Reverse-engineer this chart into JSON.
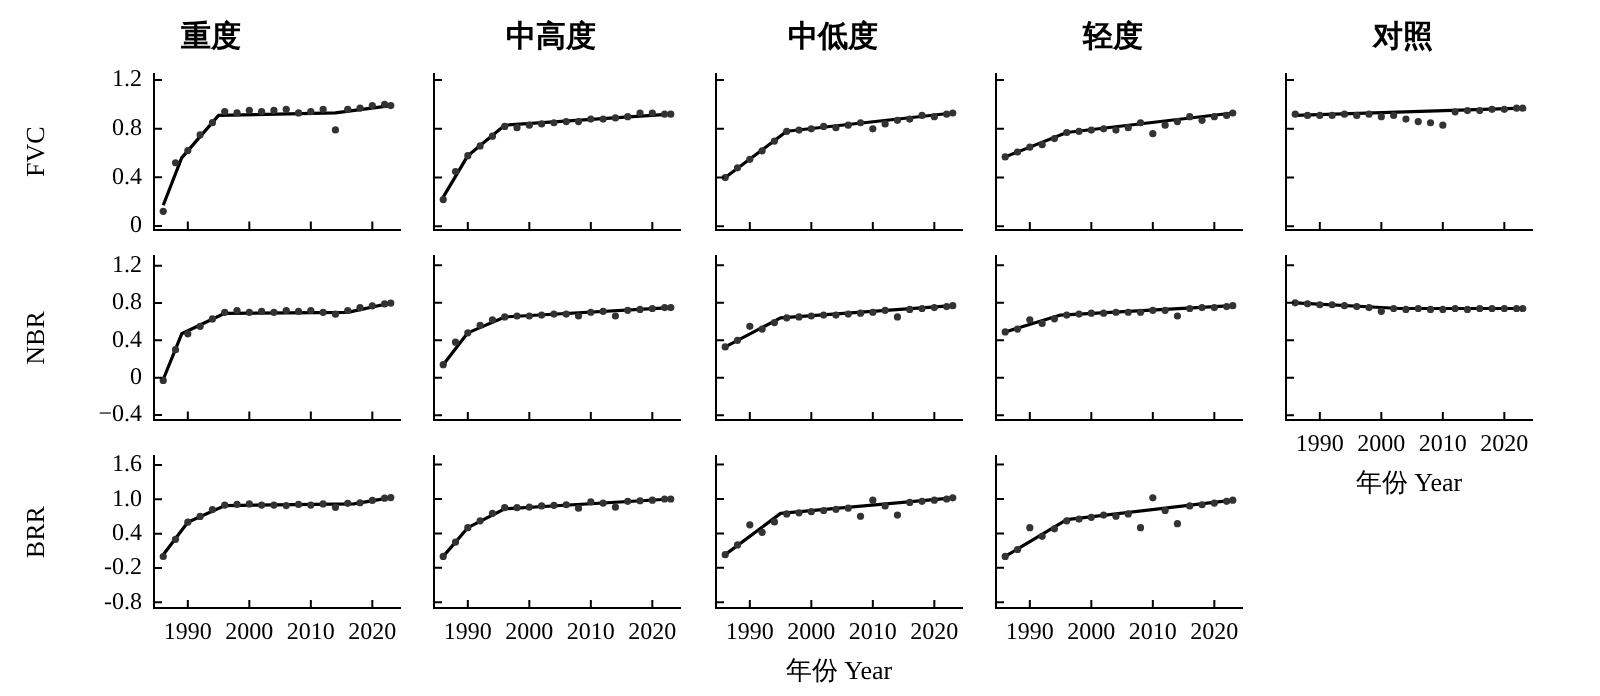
{
  "chart_data": [
    {
      "type": "line",
      "title": "重度",
      "ylabel": "FVC",
      "tick_labels": "y",
      "x": [
        1986,
        1988,
        1990,
        1992,
        1994,
        1996,
        1998,
        2000,
        2002,
        2004,
        2006,
        2008,
        2010,
        2012,
        2014,
        2016,
        2018,
        2020,
        2022,
        2023
      ],
      "xlim": [
        1984.5,
        2024.5
      ],
      "xticks": [
        1990,
        2000,
        2010,
        2020
      ],
      "ylim": [
        -0.03,
        1.25
      ],
      "yticks": [
        0,
        0.4,
        0.8,
        1.2
      ],
      "series": [
        {
          "type": "scatter",
          "marker": "circle",
          "color": "#333333",
          "values": [
            0.12,
            0.52,
            0.62,
            0.75,
            0.85,
            0.94,
            0.93,
            0.95,
            0.94,
            0.95,
            0.96,
            0.93,
            0.94,
            0.96,
            0.79,
            0.96,
            0.97,
            0.99,
            1.0,
            0.99
          ]
        },
        {
          "type": "line",
          "color": "#000000",
          "x": [
            1986,
            1989,
            1995,
            2014,
            2023
          ],
          "values": [
            0.17,
            0.56,
            0.91,
            0.93,
            0.99
          ]
        }
      ]
    },
    {
      "type": "line",
      "title": "中高度",
      "tick_labels": false,
      "x": [
        1986,
        1988,
        1990,
        1992,
        1994,
        1996,
        1998,
        2000,
        2002,
        2004,
        2006,
        2008,
        2010,
        2012,
        2014,
        2016,
        2018,
        2020,
        2022,
        2023
      ],
      "xlim": [
        1984.5,
        2024.5
      ],
      "xticks": [
        1990,
        2000,
        2010,
        2020
      ],
      "ylim": [
        -0.03,
        1.25
      ],
      "yticks": [
        0,
        0.4,
        0.8,
        1.2
      ],
      "series": [
        {
          "type": "scatter",
          "marker": "circle",
          "color": "#333333",
          "values": [
            0.22,
            0.45,
            0.58,
            0.66,
            0.74,
            0.82,
            0.81,
            0.83,
            0.84,
            0.85,
            0.86,
            0.86,
            0.88,
            0.88,
            0.89,
            0.9,
            0.93,
            0.93,
            0.92,
            0.92
          ]
        },
        {
          "type": "line",
          "color": "#000000",
          "x": [
            1986,
            1990,
            1996,
            2023
          ],
          "values": [
            0.24,
            0.58,
            0.83,
            0.92
          ]
        }
      ]
    },
    {
      "type": "line",
      "title": "中低度",
      "tick_labels": false,
      "x": [
        1986,
        1988,
        1990,
        1992,
        1994,
        1996,
        1998,
        2000,
        2002,
        2004,
        2006,
        2008,
        2010,
        2012,
        2014,
        2016,
        2018,
        2020,
        2022,
        2023
      ],
      "xlim": [
        1984.5,
        2024.5
      ],
      "xticks": [
        1990,
        2000,
        2010,
        2020
      ],
      "ylim": [
        -0.03,
        1.25
      ],
      "yticks": [
        0,
        0.4,
        0.8,
        1.2
      ],
      "series": [
        {
          "type": "scatter",
          "marker": "circle",
          "color": "#333333",
          "values": [
            0.4,
            0.48,
            0.55,
            0.62,
            0.7,
            0.78,
            0.79,
            0.8,
            0.82,
            0.81,
            0.83,
            0.85,
            0.8,
            0.84,
            0.87,
            0.88,
            0.91,
            0.9,
            0.92,
            0.93
          ]
        },
        {
          "type": "line",
          "color": "#000000",
          "x": [
            1986,
            1996,
            2023
          ],
          "values": [
            0.4,
            0.78,
            0.93
          ]
        }
      ]
    },
    {
      "type": "line",
      "title": "轻度",
      "tick_labels": false,
      "x": [
        1986,
        1988,
        1990,
        1992,
        1994,
        1996,
        1998,
        2000,
        2002,
        2004,
        2006,
        2008,
        2010,
        2012,
        2014,
        2016,
        2018,
        2020,
        2022,
        2023
      ],
      "xlim": [
        1984.5,
        2024.5
      ],
      "xticks": [
        1990,
        2000,
        2010,
        2020
      ],
      "ylim": [
        -0.03,
        1.25
      ],
      "yticks": [
        0,
        0.4,
        0.8,
        1.2
      ],
      "series": [
        {
          "type": "scatter",
          "marker": "circle",
          "color": "#333333",
          "values": [
            0.57,
            0.61,
            0.65,
            0.67,
            0.72,
            0.77,
            0.78,
            0.79,
            0.8,
            0.79,
            0.81,
            0.85,
            0.76,
            0.83,
            0.86,
            0.9,
            0.87,
            0.9,
            0.91,
            0.93
          ]
        },
        {
          "type": "line",
          "color": "#000000",
          "x": [
            1986,
            1996,
            2023
          ],
          "values": [
            0.57,
            0.77,
            0.93
          ]
        }
      ]
    },
    {
      "type": "line",
      "title": "对照",
      "tick_labels": false,
      "x": [
        1986,
        1988,
        1990,
        1992,
        1994,
        1996,
        1998,
        2000,
        2002,
        2004,
        2006,
        2008,
        2010,
        2012,
        2014,
        2016,
        2018,
        2020,
        2022,
        2023
      ],
      "xlim": [
        1984.5,
        2024.5
      ],
      "xticks": [
        1990,
        2000,
        2010,
        2020
      ],
      "ylim": [
        -0.03,
        1.25
      ],
      "yticks": [
        0,
        0.4,
        0.8,
        1.2
      ],
      "series": [
        {
          "type": "scatter",
          "marker": "circle",
          "color": "#333333",
          "values": [
            0.92,
            0.91,
            0.91,
            0.91,
            0.92,
            0.91,
            0.92,
            0.9,
            0.91,
            0.88,
            0.86,
            0.85,
            0.83,
            0.94,
            0.95,
            0.95,
            0.96,
            0.96,
            0.97,
            0.97
          ]
        },
        {
          "type": "line",
          "color": "#000000",
          "x": [
            1986,
            2023
          ],
          "values": [
            0.91,
            0.97
          ]
        }
      ]
    },
    {
      "type": "line",
      "ylabel": "NBR",
      "tick_labels": "y",
      "x": [
        1986,
        1988,
        1990,
        1992,
        1994,
        1996,
        1998,
        2000,
        2002,
        2004,
        2006,
        2008,
        2010,
        2012,
        2014,
        2016,
        2018,
        2020,
        2022,
        2023
      ],
      "xlim": [
        1984.5,
        2024.5
      ],
      "xticks": [
        1990,
        2000,
        2010,
        2020
      ],
      "ylim": [
        -0.45,
        1.3
      ],
      "yticks": [
        {
          "value": -0.4,
          "label": "−0.4"
        },
        0,
        0.4,
        0.8,
        1.2
      ],
      "series": [
        {
          "type": "scatter",
          "marker": "circle",
          "color": "#333333",
          "values": [
            -0.03,
            0.3,
            0.47,
            0.55,
            0.63,
            0.7,
            0.72,
            0.7,
            0.71,
            0.7,
            0.72,
            0.71,
            0.72,
            0.7,
            0.68,
            0.72,
            0.75,
            0.77,
            0.79,
            0.8
          ]
        },
        {
          "type": "line",
          "color": "#000000",
          "x": [
            1986,
            1989,
            1996,
            2016,
            2023
          ],
          "values": [
            -0.02,
            0.47,
            0.69,
            0.7,
            0.8
          ]
        }
      ]
    },
    {
      "type": "line",
      "tick_labels": false,
      "x": [
        1986,
        1988,
        1990,
        1992,
        1994,
        1996,
        1998,
        2000,
        2002,
        2004,
        2006,
        2008,
        2010,
        2012,
        2014,
        2016,
        2018,
        2020,
        2022,
        2023
      ],
      "xlim": [
        1984.5,
        2024.5
      ],
      "xticks": [
        1990,
        2000,
        2010,
        2020
      ],
      "ylim": [
        -0.45,
        1.3
      ],
      "yticks": [
        -0.4,
        0,
        0.4,
        0.8,
        1.2
      ],
      "series": [
        {
          "type": "scatter",
          "marker": "circle",
          "color": "#333333",
          "values": [
            0.14,
            0.38,
            0.48,
            0.56,
            0.62,
            0.65,
            0.66,
            0.66,
            0.67,
            0.68,
            0.68,
            0.66,
            0.7,
            0.71,
            0.66,
            0.72,
            0.73,
            0.74,
            0.75,
            0.75
          ]
        },
        {
          "type": "line",
          "color": "#000000",
          "x": [
            1986,
            1990,
            1996,
            2023
          ],
          "values": [
            0.14,
            0.48,
            0.65,
            0.75
          ]
        }
      ]
    },
    {
      "type": "line",
      "tick_labels": false,
      "x": [
        1986,
        1988,
        1990,
        1992,
        1994,
        1996,
        1998,
        2000,
        2002,
        2004,
        2006,
        2008,
        2010,
        2012,
        2014,
        2016,
        2018,
        2020,
        2022,
        2023
      ],
      "xlim": [
        1984.5,
        2024.5
      ],
      "xticks": [
        1990,
        2000,
        2010,
        2020
      ],
      "ylim": [
        -0.45,
        1.3
      ],
      "yticks": [
        -0.4,
        0,
        0.4,
        0.8,
        1.2
      ],
      "series": [
        {
          "type": "scatter",
          "marker": "circle",
          "color": "#333333",
          "values": [
            0.33,
            0.4,
            0.55,
            0.52,
            0.59,
            0.64,
            0.65,
            0.66,
            0.67,
            0.67,
            0.68,
            0.69,
            0.7,
            0.72,
            0.65,
            0.73,
            0.74,
            0.75,
            0.76,
            0.77
          ]
        },
        {
          "type": "line",
          "color": "#000000",
          "x": [
            1986,
            1995,
            2023
          ],
          "values": [
            0.33,
            0.64,
            0.77
          ]
        }
      ]
    },
    {
      "type": "line",
      "tick_labels": false,
      "x": [
        1986,
        1988,
        1990,
        1992,
        1994,
        1996,
        1998,
        2000,
        2002,
        2004,
        2006,
        2008,
        2010,
        2012,
        2014,
        2016,
        2018,
        2020,
        2022,
        2023
      ],
      "xlim": [
        1984.5,
        2024.5
      ],
      "xticks": [
        1990,
        2000,
        2010,
        2020
      ],
      "ylim": [
        -0.45,
        1.3
      ],
      "yticks": [
        -0.4,
        0,
        0.4,
        0.8,
        1.2
      ],
      "series": [
        {
          "type": "scatter",
          "marker": "circle",
          "color": "#333333",
          "values": [
            0.49,
            0.52,
            0.62,
            0.58,
            0.63,
            0.67,
            0.68,
            0.69,
            0.69,
            0.7,
            0.7,
            0.7,
            0.72,
            0.72,
            0.66,
            0.74,
            0.75,
            0.75,
            0.76,
            0.77
          ]
        },
        {
          "type": "line",
          "color": "#000000",
          "x": [
            1986,
            1995,
            2023
          ],
          "values": [
            0.49,
            0.67,
            0.77
          ]
        }
      ]
    },
    {
      "type": "line",
      "xlabel": "年份 Year",
      "tick_labels": "x",
      "x": [
        1986,
        1988,
        1990,
        1992,
        1994,
        1996,
        1998,
        2000,
        2002,
        2004,
        2006,
        2008,
        2010,
        2012,
        2014,
        2016,
        2018,
        2020,
        2022,
        2023
      ],
      "xlim": [
        1984.5,
        2024.5
      ],
      "xticks": [
        1990,
        2000,
        2010,
        2020
      ],
      "ylim": [
        -0.45,
        1.3
      ],
      "yticks": [
        -0.4,
        0,
        0.4,
        0.8,
        1.2
      ],
      "series": [
        {
          "type": "scatter",
          "marker": "circle",
          "color": "#333333",
          "values": [
            0.8,
            0.79,
            0.78,
            0.78,
            0.77,
            0.76,
            0.75,
            0.71,
            0.74,
            0.73,
            0.74,
            0.73,
            0.73,
            0.74,
            0.73,
            0.74,
            0.74,
            0.74,
            0.74,
            0.74
          ]
        },
        {
          "type": "line",
          "color": "#000000",
          "x": [
            1986,
            2003,
            2023
          ],
          "values": [
            0.8,
            0.74,
            0.74
          ]
        }
      ]
    },
    {
      "type": "line",
      "ylabel": "BRR",
      "x": [
        1986,
        1988,
        1990,
        1992,
        1994,
        1996,
        1998,
        2000,
        2002,
        2004,
        2006,
        2008,
        2010,
        2012,
        2014,
        2016,
        2018,
        2020,
        2022,
        2023
      ],
      "xlim": [
        1984.5,
        2024.5
      ],
      "xticks": [
        1990,
        2000,
        2010,
        2020
      ],
      "ylim": [
        -0.9,
        1.75
      ],
      "yticks": [
        {
          "value": -0.8,
          "label": "-0.8"
        },
        {
          "value": -0.2,
          "label": "-0.2"
        },
        0.4,
        {
          "value": 1,
          "label": "1.0"
        },
        1.6
      ],
      "series": [
        {
          "type": "scatter",
          "marker": "circle",
          "color": "#333333",
          "values": [
            0.0,
            0.3,
            0.6,
            0.7,
            0.82,
            0.9,
            0.91,
            0.92,
            0.9,
            0.9,
            0.89,
            0.91,
            0.9,
            0.92,
            0.86,
            0.93,
            0.94,
            0.98,
            1.02,
            1.03
          ]
        },
        {
          "type": "line",
          "color": "#000000",
          "x": [
            1986,
            1990,
            1996,
            2017,
            2023
          ],
          "values": [
            0.03,
            0.6,
            0.89,
            0.92,
            1.03
          ]
        }
      ]
    },
    {
      "type": "line",
      "tick_labels": "x",
      "x": [
        1986,
        1988,
        1990,
        1992,
        1994,
        1996,
        1998,
        2000,
        2002,
        2004,
        2006,
        2008,
        2010,
        2012,
        2014,
        2016,
        2018,
        2020,
        2022,
        2023
      ],
      "xlim": [
        1984.5,
        2024.5
      ],
      "xticks": [
        1990,
        2000,
        2010,
        2020
      ],
      "ylim": [
        -0.9,
        1.75
      ],
      "yticks": [
        -0.8,
        -0.2,
        0.4,
        1,
        1.6
      ],
      "series": [
        {
          "type": "scatter",
          "marker": "circle",
          "color": "#333333",
          "values": [
            0.0,
            0.25,
            0.5,
            0.62,
            0.75,
            0.85,
            0.85,
            0.86,
            0.88,
            0.89,
            0.9,
            0.84,
            0.95,
            0.93,
            0.86,
            0.96,
            0.97,
            0.98,
            1.0,
            1.0
          ]
        },
        {
          "type": "line",
          "color": "#000000",
          "x": [
            1986,
            1990,
            1996,
            2023
          ],
          "values": [
            0.0,
            0.5,
            0.83,
            1.0
          ]
        }
      ]
    },
    {
      "type": "line",
      "xlabel": "年份 Year",
      "tick_labels": "x",
      "x": [
        1986,
        1988,
        1990,
        1992,
        1994,
        1996,
        1998,
        2000,
        2002,
        2004,
        2006,
        2008,
        2010,
        2012,
        2014,
        2016,
        2018,
        2020,
        2022,
        2023
      ],
      "xlim": [
        1984.5,
        2024.5
      ],
      "xticks": [
        1990,
        2000,
        2010,
        2020
      ],
      "ylim": [
        -0.9,
        1.75
      ],
      "yticks": [
        -0.8,
        -0.2,
        0.4,
        1,
        1.6
      ],
      "series": [
        {
          "type": "scatter",
          "marker": "circle",
          "color": "#333333",
          "values": [
            0.03,
            0.2,
            0.55,
            0.42,
            0.6,
            0.74,
            0.76,
            0.78,
            0.8,
            0.82,
            0.84,
            0.7,
            0.98,
            0.88,
            0.72,
            0.94,
            0.96,
            0.98,
            1.0,
            1.02
          ]
        },
        {
          "type": "line",
          "color": "#000000",
          "x": [
            1986,
            1995,
            2023
          ],
          "values": [
            0.03,
            0.75,
            1.02
          ]
        }
      ]
    },
    {
      "type": "line",
      "tick_labels": "x",
      "x": [
        1986,
        1988,
        1990,
        1992,
        1994,
        1996,
        1998,
        2000,
        2002,
        2004,
        2006,
        2008,
        2010,
        2012,
        2014,
        2016,
        2018,
        2020,
        2022,
        2023
      ],
      "xlim": [
        1984.5,
        2024.5
      ],
      "xticks": [
        1990,
        2000,
        2010,
        2020
      ],
      "ylim": [
        -0.9,
        1.75
      ],
      "yticks": [
        -0.8,
        -0.2,
        0.4,
        1,
        1.6
      ],
      "series": [
        {
          "type": "scatter",
          "marker": "circle",
          "color": "#333333",
          "values": [
            0.0,
            0.12,
            0.5,
            0.35,
            0.48,
            0.62,
            0.65,
            0.68,
            0.72,
            0.7,
            0.74,
            0.5,
            1.02,
            0.8,
            0.57,
            0.88,
            0.9,
            0.93,
            0.96,
            0.98
          ]
        },
        {
          "type": "line",
          "color": "#000000",
          "x": [
            1986,
            1996,
            2023
          ],
          "values": [
            0.0,
            0.64,
            0.98
          ]
        }
      ]
    }
  ]
}
